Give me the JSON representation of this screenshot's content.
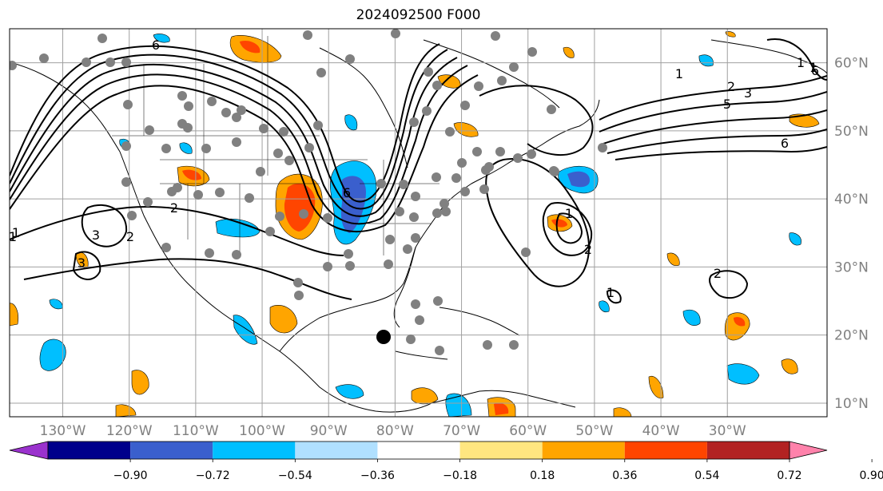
{
  "title": "2024092500 F000",
  "map": {
    "lon_range": [
      -138,
      -15
    ],
    "lat_range": [
      8,
      65
    ],
    "lat_labels": [
      "60°N",
      "50°N",
      "40°N",
      "30°N",
      "20°N",
      "10°N"
    ],
    "lat_values": [
      60,
      50,
      40,
      30,
      20,
      10
    ],
    "lon_labels": [
      "130°W",
      "120°W",
      "110°W",
      "100°W",
      "90°W",
      "80°W",
      "70°W",
      "60°W",
      "50°W",
      "40°W",
      "30°W"
    ],
    "lon_values": [
      -130,
      -120,
      -110,
      -100,
      -90,
      -80,
      -70,
      -60,
      -50,
      -40,
      -30
    ],
    "contour_labels": [
      "6",
      "1",
      "2",
      "3",
      "5",
      "6",
      "1",
      "2",
      "3",
      "6",
      "2",
      "1",
      "1",
      "6",
      "2",
      "1",
      "3",
      "2",
      "1",
      "1"
    ],
    "colors": {
      "grid": "#a0a0a0",
      "coast": "#000000",
      "station": "#808080"
    }
  },
  "colorbar": {
    "ticks": [
      "−0.90",
      "−0.72",
      "−0.54",
      "−0.36",
      "−0.18",
      "0.18",
      "0.36",
      "0.54",
      "0.72",
      "0.90"
    ],
    "colors": [
      "#9a32cd",
      "#00008b",
      "#3a5fcd",
      "#00bfff",
      "#b0e0ff",
      "#ffffff",
      "#ffe680",
      "#ffa500",
      "#ff4500",
      "#b22222",
      "#ff82ab"
    ]
  }
}
